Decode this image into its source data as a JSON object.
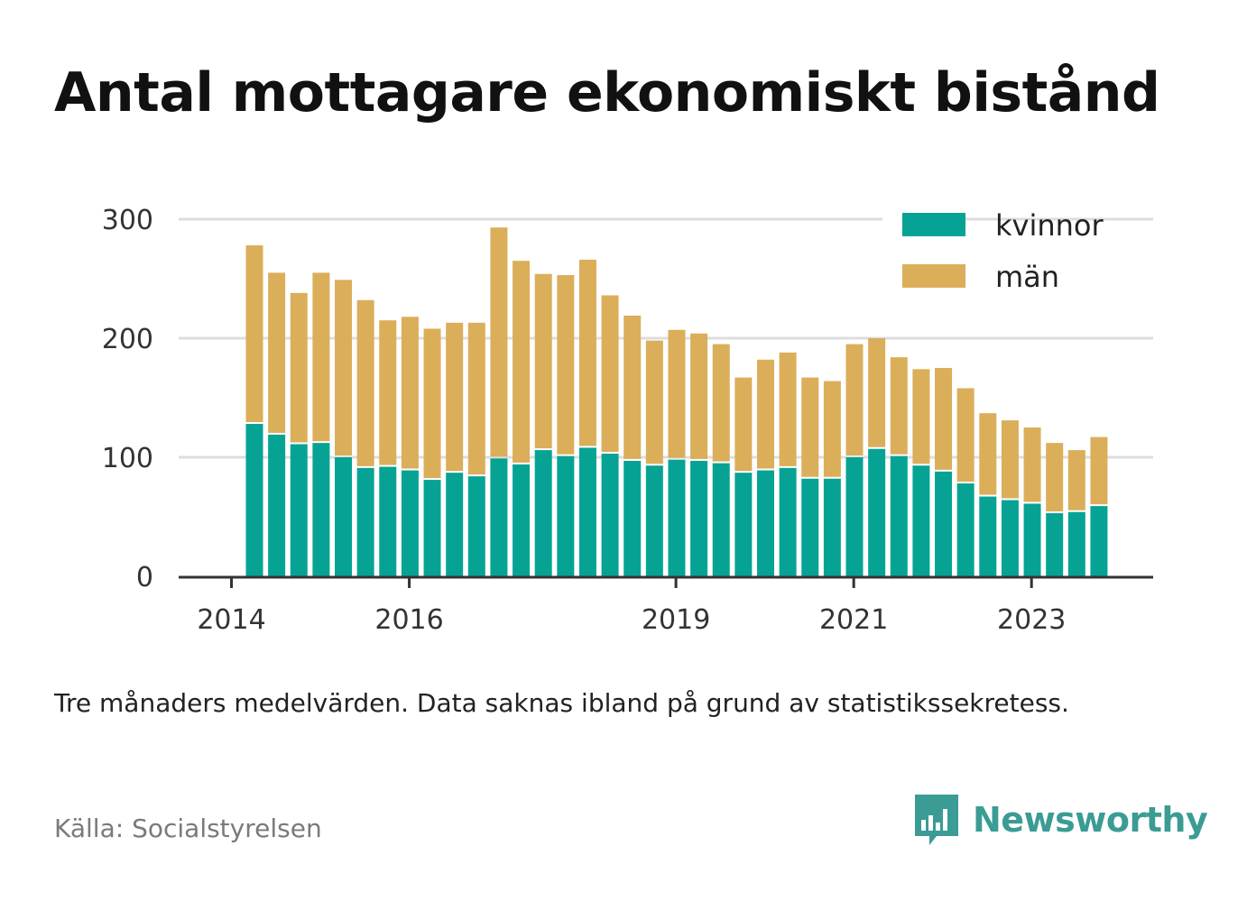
{
  "title": "Antal mottagare ekonomiskt bistånd",
  "note": "Tre månaders medelvärden. Data saknas ibland på grund av statistikssekretess.",
  "source": "Källa: Socialstyrelsen",
  "brand": {
    "name": "Newsworthy",
    "color": "#3a9c94",
    "icon": "bar-chart-speech-bubble-icon"
  },
  "colors": {
    "kvinnor": "#06a395",
    "man": "#dbae5a",
    "grid": "#dddddd",
    "axis": "#333333"
  },
  "chart_data": {
    "type": "bar",
    "stacked": true,
    "ylim": [
      0,
      300
    ],
    "yticks": [
      0,
      100,
      200,
      300
    ],
    "xticks": [
      "2014",
      "2016",
      "2019",
      "2021",
      "2023"
    ],
    "grid": true,
    "legend_position": "top-right",
    "series": [
      {
        "name": "kvinnor",
        "values": [
          128,
          119,
          111,
          112,
          100,
          91,
          92,
          89,
          81,
          87,
          84,
          99,
          94,
          106,
          101,
          108,
          103,
          97,
          93,
          98,
          97,
          95,
          87,
          89,
          91,
          82,
          82,
          100,
          107,
          101,
          93,
          88,
          78,
          67,
          64,
          61,
          53,
          54,
          59
        ]
      },
      {
        "name": "män",
        "values": [
          150,
          136,
          127,
          143,
          149,
          141,
          123,
          129,
          127,
          126,
          129,
          194,
          171,
          148,
          152,
          158,
          133,
          122,
          105,
          109,
          107,
          100,
          80,
          93,
          97,
          85,
          82,
          95,
          93,
          83,
          81,
          87,
          80,
          70,
          67,
          64,
          59,
          52,
          58
        ]
      }
    ]
  }
}
